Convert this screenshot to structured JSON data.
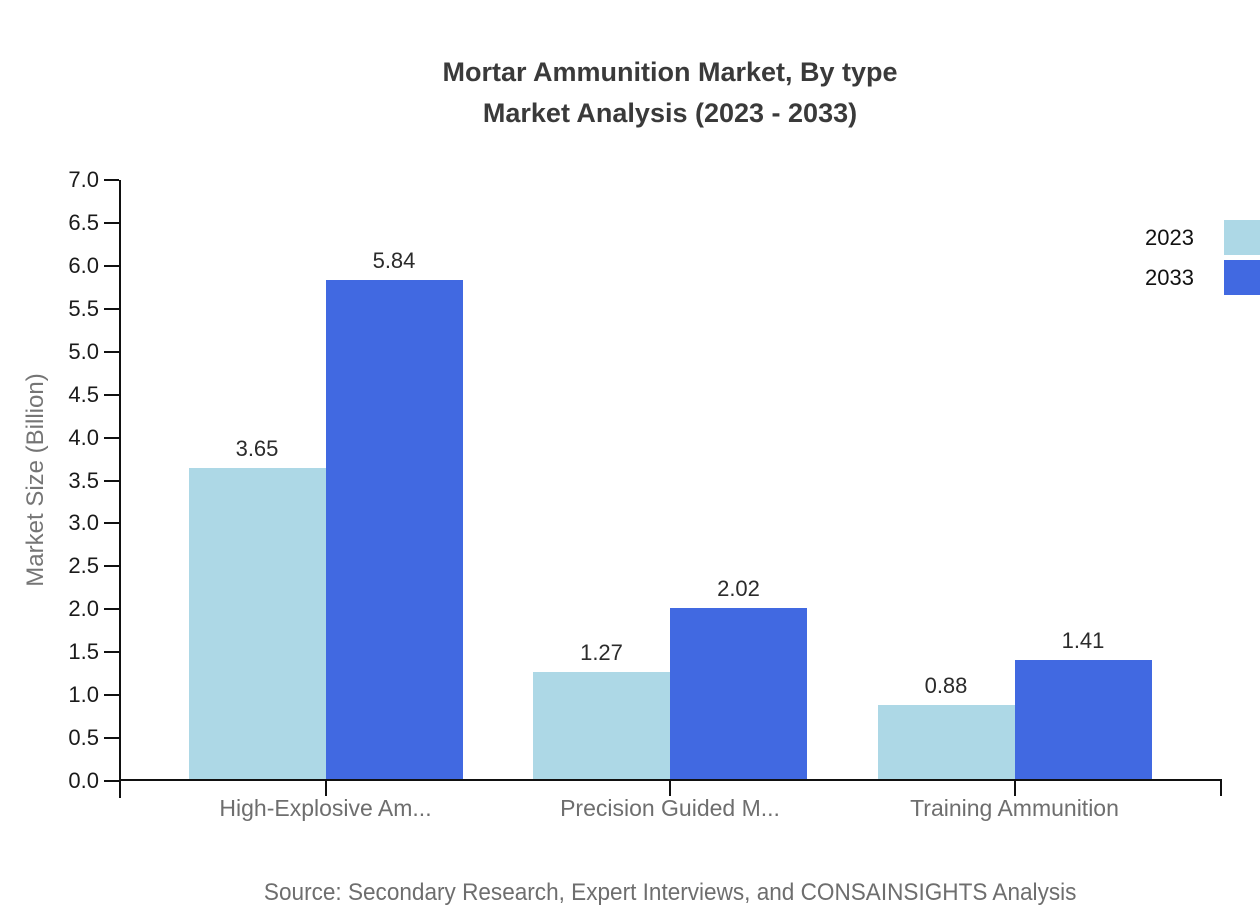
{
  "title": {
    "line1": "Mortar Ammunition Market, By type",
    "line2": "Market Analysis (2023 - 2033)"
  },
  "source_note": "Source: Secondary Research, Expert Interviews, and CONSAINSIGHTS Analysis",
  "colors": {
    "series_2023": "#ADD8E6",
    "series_2033": "#4169E1",
    "axis": "#111111",
    "title_text": "#3a3a3a",
    "muted_text": "#6e6e6e"
  },
  "chart_data": {
    "type": "bar",
    "title": "Mortar Ammunition Market, By type Market Analysis (2023 - 2033)",
    "categories": [
      "High-Explosive Am...",
      "Precision Guided M...",
      "Training Ammunition"
    ],
    "series": [
      {
        "name": "2023",
        "color": "#ADD8E6",
        "values": [
          3.65,
          1.27,
          0.88
        ]
      },
      {
        "name": "2033",
        "color": "#4169E1",
        "values": [
          5.84,
          2.02,
          1.41
        ]
      }
    ],
    "value_labels": [
      "3.65",
      "5.84",
      "1.27",
      "2.02",
      "0.88",
      "1.41"
    ],
    "xlabel": "",
    "ylabel": "Market Size (Billion)",
    "ylim": [
      0,
      7
    ],
    "yticks": [
      "0.0",
      "0.5",
      "1.0",
      "1.5",
      "2.0",
      "2.5",
      "3.0",
      "3.5",
      "4.0",
      "4.5",
      "5.0",
      "5.5",
      "6.0",
      "6.5",
      "7.0"
    ],
    "grid": false,
    "legend_position": "top-right",
    "value_labels_shown": true
  }
}
